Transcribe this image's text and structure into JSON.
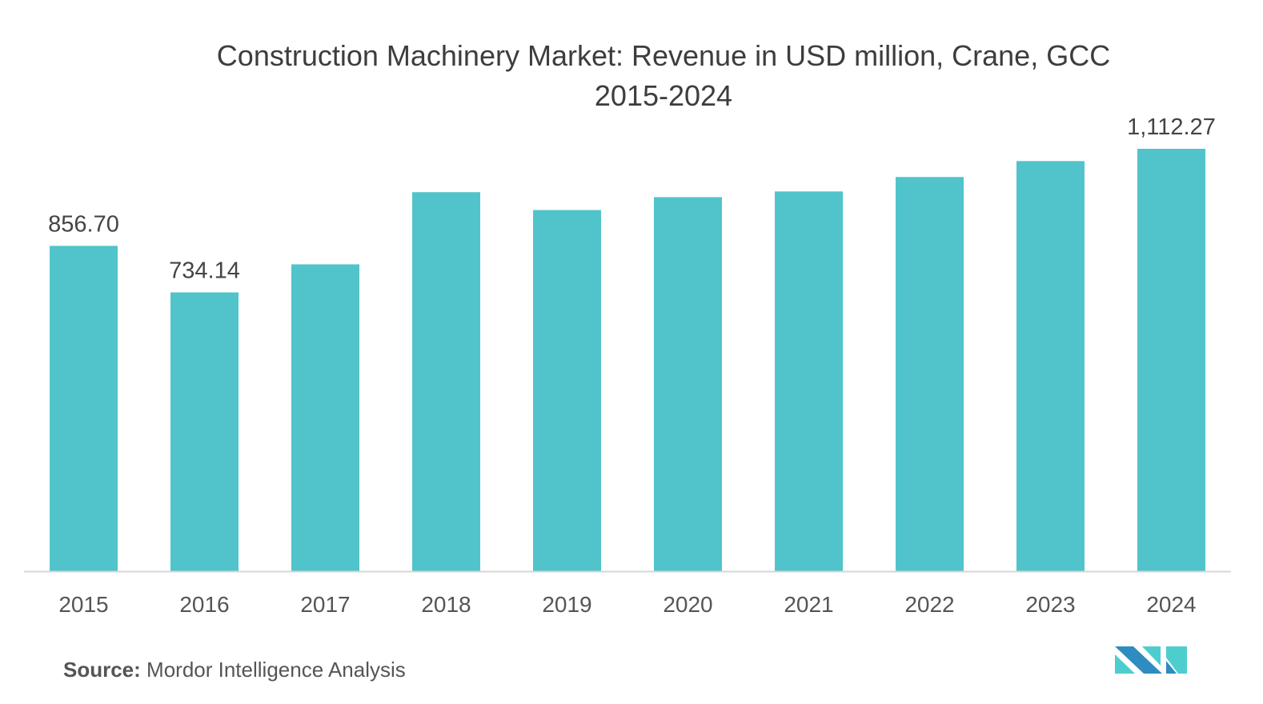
{
  "chart_data": {
    "type": "bar",
    "title": "Construction Machinery Market: Revenue in USD million, Crane, GCC",
    "subtitle": "2015-2024",
    "xlabel": "",
    "ylabel": "",
    "categories": [
      "2015",
      "2016",
      "2017",
      "2018",
      "2019",
      "2020",
      "2021",
      "2022",
      "2023",
      "2024"
    ],
    "values": [
      856.7,
      734.14,
      808,
      998,
      951,
      985,
      1000,
      1038,
      1080,
      1112.27
    ],
    "data_labels": {
      "0": "856.70",
      "1": "734.14",
      "9": "1,112.27"
    },
    "ylim": [
      0,
      1112.27
    ],
    "grid": false,
    "bar_color": "#50c4ca"
  },
  "source_label": "Source:",
  "source_text": "Mordor Intelligence Analysis",
  "logo_colors": {
    "dark": "#2e8cc0",
    "light": "#4ecdcf"
  }
}
